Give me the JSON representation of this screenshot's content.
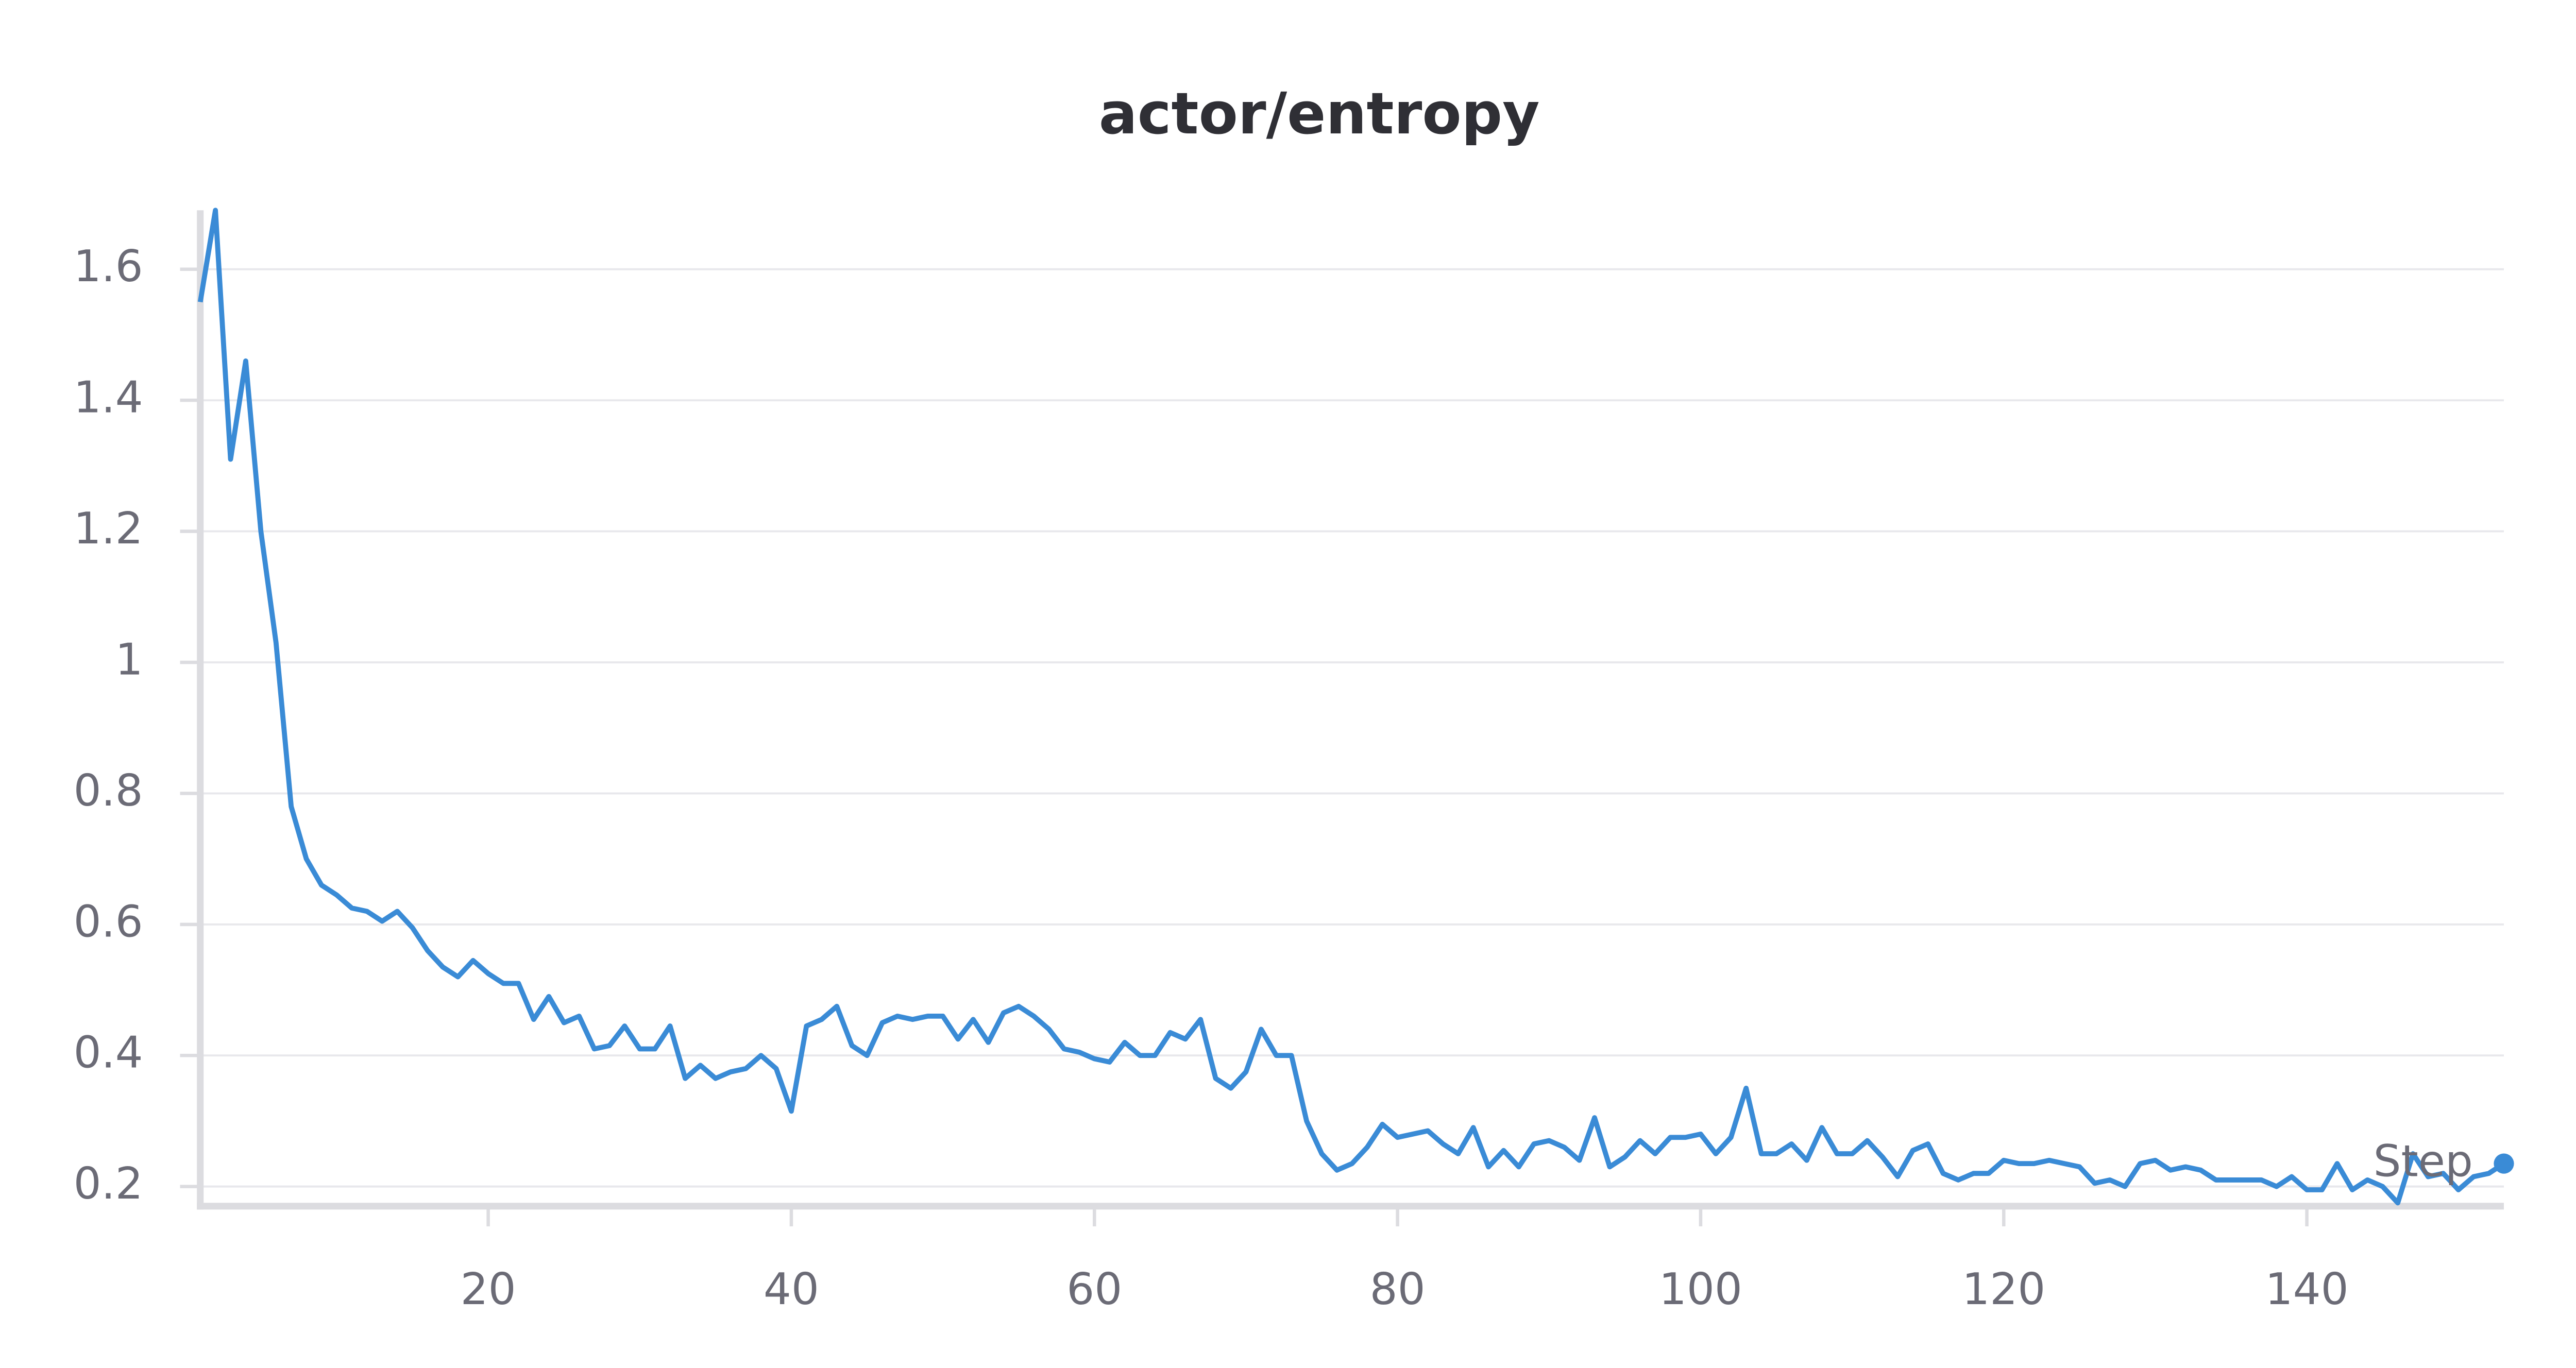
{
  "chart_data": {
    "type": "line",
    "title": "actor/entropy",
    "x_label": "Step",
    "x": [
      1,
      2,
      3,
      4,
      5,
      6,
      7,
      8,
      9,
      10,
      11,
      12,
      13,
      14,
      15,
      16,
      17,
      18,
      19,
      20,
      21,
      22,
      23,
      24,
      25,
      26,
      27,
      28,
      29,
      30,
      31,
      32,
      33,
      34,
      35,
      36,
      37,
      38,
      39,
      40,
      41,
      42,
      43,
      44,
      45,
      46,
      47,
      48,
      49,
      50,
      51,
      52,
      53,
      54,
      55,
      56,
      57,
      58,
      59,
      60,
      61,
      62,
      63,
      64,
      65,
      66,
      67,
      68,
      69,
      70,
      71,
      72,
      73,
      74,
      75,
      76,
      77,
      78,
      79,
      80,
      81,
      82,
      83,
      84,
      85,
      86,
      87,
      88,
      89,
      90,
      91,
      92,
      93,
      94,
      95,
      96,
      97,
      98,
      99,
      100,
      101,
      102,
      103,
      104,
      105,
      106,
      107,
      108,
      109,
      110,
      111,
      112,
      113,
      114,
      115,
      116,
      117,
      118,
      119,
      120,
      121,
      122,
      123,
      124,
      125,
      126,
      127,
      128,
      129,
      130,
      131,
      132,
      133,
      134,
      135,
      136,
      137,
      138,
      139,
      140,
      141,
      142,
      143,
      144,
      145,
      146,
      147,
      148,
      149,
      150,
      151,
      152,
      153
    ],
    "values": [
      1.55,
      1.69,
      1.31,
      1.46,
      1.2,
      1.03,
      0.78,
      0.7,
      0.66,
      0.645,
      0.625,
      0.62,
      0.605,
      0.62,
      0.595,
      0.56,
      0.535,
      0.52,
      0.545,
      0.525,
      0.51,
      0.51,
      0.455,
      0.49,
      0.45,
      0.46,
      0.41,
      0.415,
      0.445,
      0.41,
      0.41,
      0.445,
      0.365,
      0.385,
      0.365,
      0.375,
      0.38,
      0.4,
      0.38,
      0.315,
      0.445,
      0.455,
      0.475,
      0.415,
      0.4,
      0.45,
      0.46,
      0.455,
      0.46,
      0.46,
      0.425,
      0.455,
      0.42,
      0.465,
      0.475,
      0.46,
      0.44,
      0.41,
      0.405,
      0.395,
      0.39,
      0.42,
      0.4,
      0.4,
      0.435,
      0.425,
      0.455,
      0.365,
      0.35,
      0.375,
      0.44,
      0.4,
      0.4,
      0.3,
      0.25,
      0.225,
      0.235,
      0.26,
      0.295,
      0.275,
      0.28,
      0.285,
      0.265,
      0.25,
      0.29,
      0.23,
      0.255,
      0.23,
      0.265,
      0.27,
      0.26,
      0.24,
      0.305,
      0.23,
      0.245,
      0.27,
      0.25,
      0.275,
      0.275,
      0.28,
      0.25,
      0.275,
      0.35,
      0.25,
      0.25,
      0.265,
      0.24,
      0.29,
      0.25,
      0.25,
      0.27,
      0.245,
      0.215,
      0.255,
      0.265,
      0.22,
      0.21,
      0.22,
      0.22,
      0.24,
      0.235,
      0.235,
      0.24,
      0.235,
      0.23,
      0.205,
      0.21,
      0.2,
      0.235,
      0.24,
      0.225,
      0.23,
      0.225,
      0.21,
      0.21,
      0.21,
      0.21,
      0.2,
      0.215,
      0.195,
      0.195,
      0.235,
      0.195,
      0.21,
      0.2,
      0.175,
      0.25,
      0.215,
      0.22,
      0.195,
      0.215,
      0.22,
      0.235
    ],
    "color": "#3a8bd6",
    "xlim": [
      1,
      153
    ],
    "ylim": [
      0.17,
      1.69
    ],
    "xticks": [
      20,
      40,
      60,
      80,
      100,
      120,
      140
    ],
    "yticks": [
      0.2,
      0.4,
      0.6,
      0.8,
      1,
      1.2,
      1.4,
      1.6
    ],
    "grid": true
  }
}
